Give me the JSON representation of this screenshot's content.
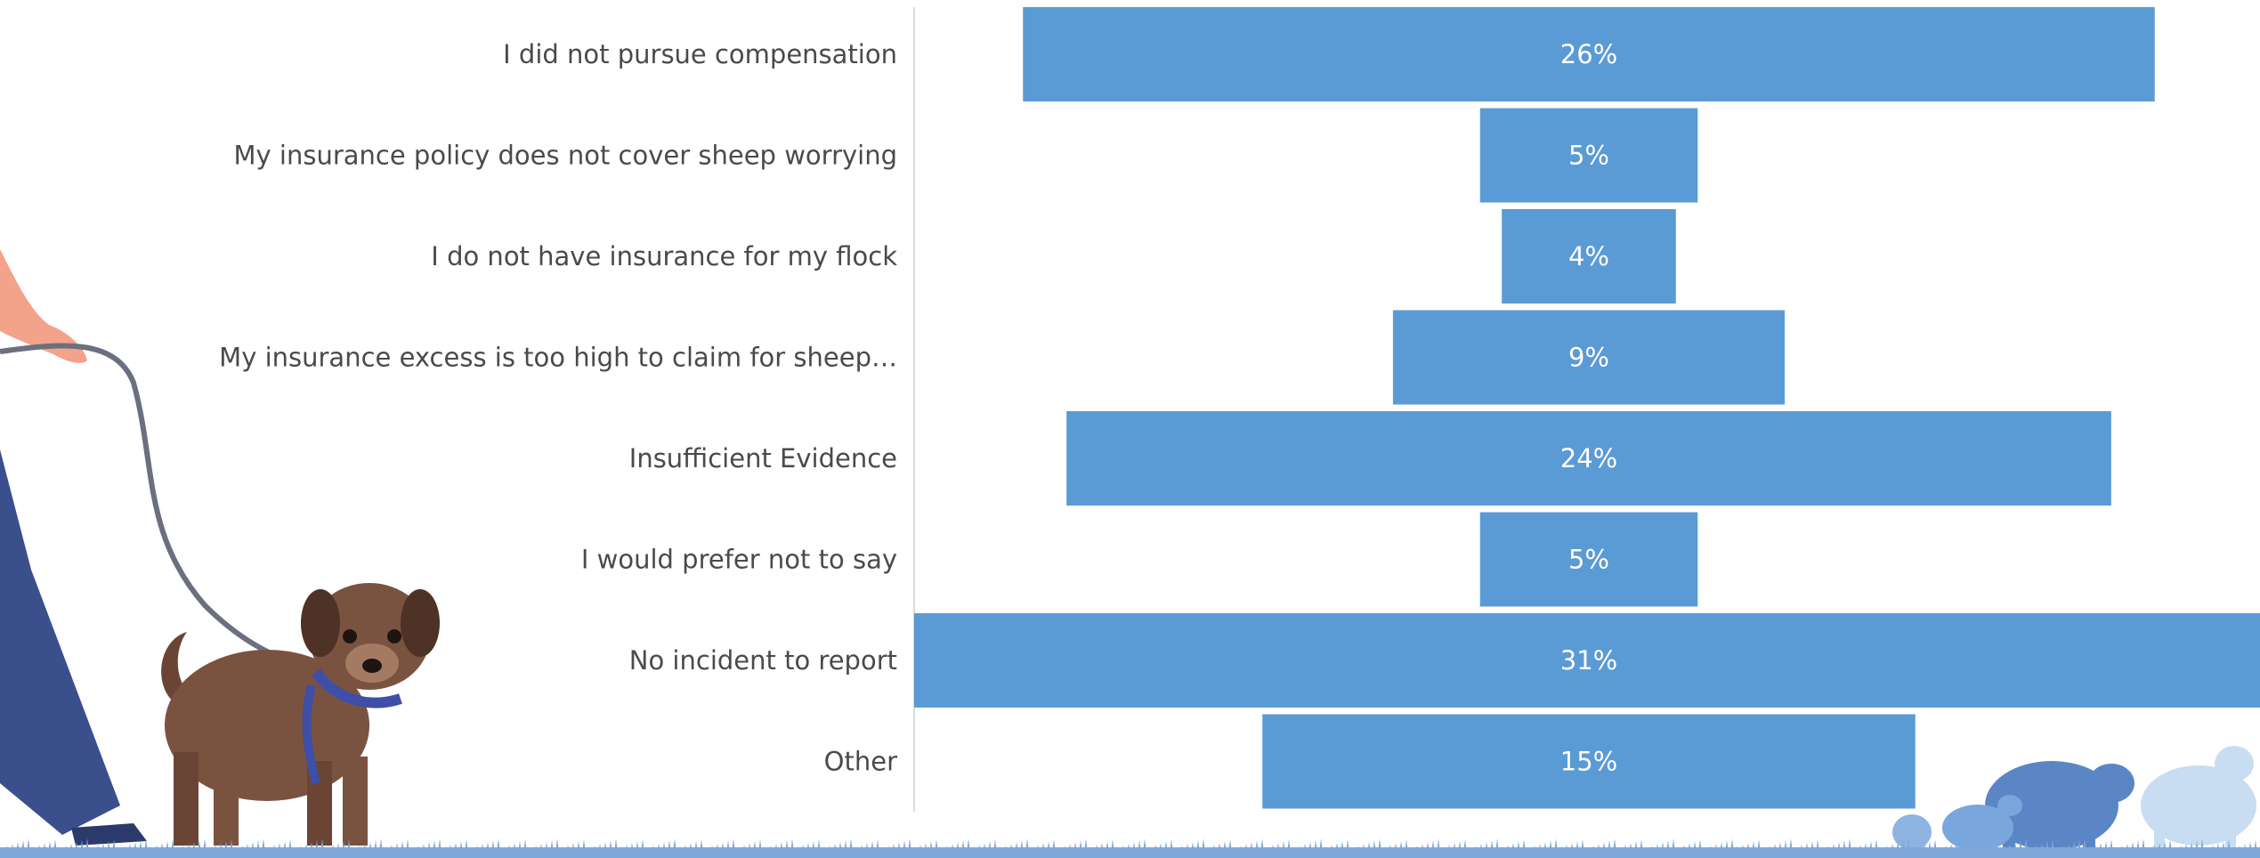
{
  "chart_data": {
    "type": "bar",
    "orientation": "horizontal",
    "layout": "funnel-centered",
    "categories": [
      "I did not pursue compensation",
      "My insurance policy does not cover sheep worrying",
      "I do not have insurance for my flock",
      "My insurance excess is too high to claim for sheep…",
      "Insufficient Evidence",
      "I would prefer not to say",
      "No incident to report",
      "Other"
    ],
    "values": [
      26,
      5,
      4,
      9,
      24,
      5,
      31,
      15
    ],
    "value_labels": [
      "26%",
      "5%",
      "4%",
      "9%",
      "24%",
      "5%",
      "31%",
      "15%"
    ],
    "unit": "%",
    "xlim": [
      0,
      31
    ],
    "title": "",
    "xlabel": "",
    "ylabel": "",
    "grid": false,
    "legend": "none"
  },
  "colors": {
    "bar": "#5b9bd5",
    "bar_label": "#ffffff",
    "category_text": "#4a4a4a",
    "axis_line": "#d9d9d9",
    "grass": "#7fa8d8",
    "dog": "#7a5340",
    "leash": "#6b6f80",
    "harness": "#3f4fa8",
    "trousers": "#3b4f8c",
    "hand": "#f2a38a",
    "sheep_dark": "#5a86c6",
    "sheep_mid": "#79a6dc",
    "sheep_light": "#c8dcf2"
  },
  "decorations": [
    "dog-walker-illustration",
    "sheep-silhouettes",
    "grass-strip"
  ]
}
